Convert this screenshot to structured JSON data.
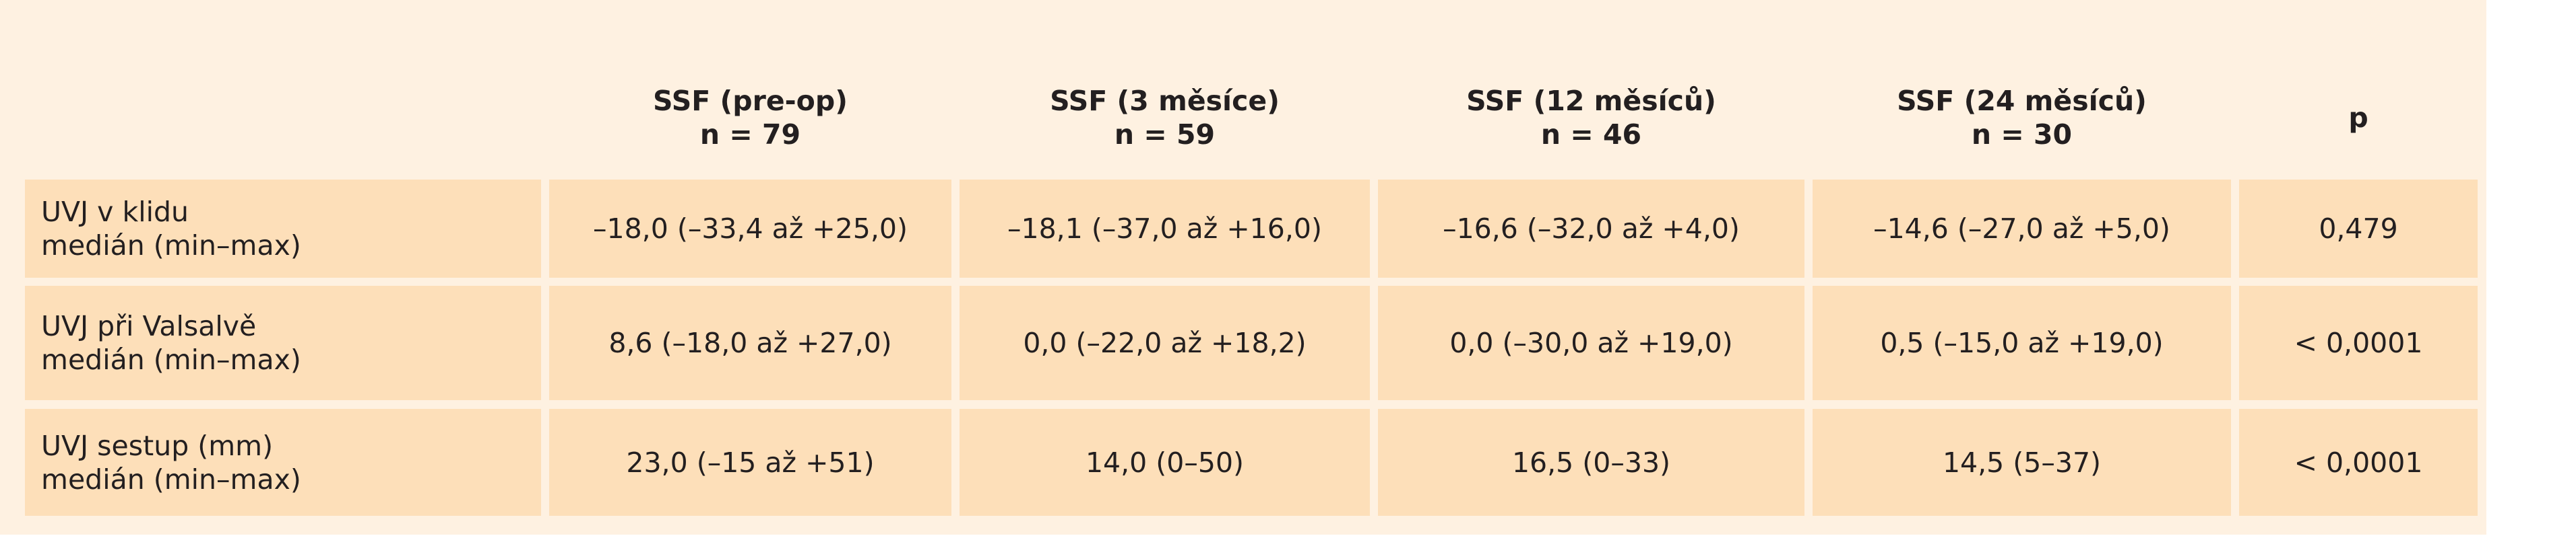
{
  "table": {
    "columns": [
      {
        "title": "SSF (pre-op)",
        "n": "n = 79"
      },
      {
        "title": "SSF (3 měsíce)",
        "n": "n = 59"
      },
      {
        "title": "SSF (12 měsíců)",
        "n": "n = 46"
      },
      {
        "title": "SSF (24 měsíců)",
        "n": "n = 30"
      },
      {
        "title": "p"
      }
    ],
    "rows": [
      {
        "label": [
          "UVJ v klidu",
          "medián (min–max)"
        ],
        "cells": [
          "–18,0 (–33,4 až +25,0)",
          "–18,1 (–37,0 až +16,0)",
          "–16,6 (–32,0 až +4,0)",
          "–14,6 (–27,0 až +5,0)",
          "0,479"
        ]
      },
      {
        "label": [
          "UVJ při Valsalvě",
          "medián (min–max)"
        ],
        "cells": [
          "8,6 (–18,0 až +27,0)",
          "0,0 (–22,0 až +18,2)",
          "0,0 (–30,0 až +19,0)",
          "0,5 (–15,0 až +19,0)",
          "< 0,0001"
        ]
      },
      {
        "label": [
          "UVJ sestup (mm)",
          "medián (min–max)"
        ],
        "cells": [
          "23,0 (–15 až +51)",
          "14,0 (0–50)",
          "16,5 (0–33)",
          "14,5 (5–37)",
          "< 0,0001"
        ]
      }
    ]
  }
}
